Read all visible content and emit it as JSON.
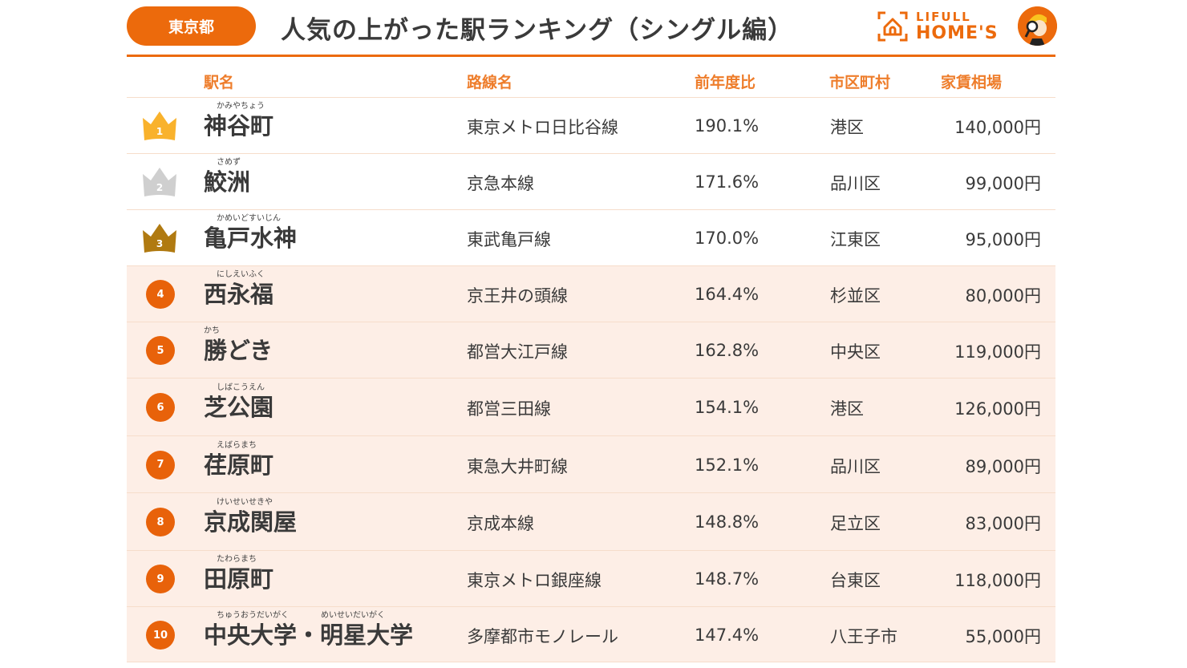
{
  "header": {
    "prefecture": "東京都",
    "title": "人気の上がった駅ランキング（シングル編）",
    "logo": {
      "line1": "LIFULL",
      "line2": "HOME'S",
      "icon": "house-bracket-icon",
      "mascot": "mascot-magnifier-icon"
    }
  },
  "colors": {
    "accent": "#ec6a0c",
    "header_text": "#ee7d2b",
    "gold": "#f9b22c",
    "silver": "#cfcfcf",
    "bronze": "#b07a11",
    "row_tint": "#fdeee6"
  },
  "columns": {
    "station": "駅名",
    "line": "路線名",
    "ratio": "前年度比",
    "city": "市区町村",
    "rent": "家賃相場"
  },
  "rows": [
    {
      "rank": "1",
      "furigana": "かみやちょう",
      "station": "神谷町",
      "line": "東京メトロ日比谷線",
      "ratio": "190.1%",
      "city": "港区",
      "rent": "140,000円"
    },
    {
      "rank": "2",
      "furigana": "さめず",
      "station": "鮫洲",
      "line": "京急本線",
      "ratio": "171.6%",
      "city": "品川区",
      "rent": "99,000円"
    },
    {
      "rank": "3",
      "furigana": "かめいどすいじん",
      "station": "亀戸水神",
      "line": "東武亀戸線",
      "ratio": "170.0%",
      "city": "江東区",
      "rent": "95,000円"
    },
    {
      "rank": "4",
      "furigana": "にしえいふく",
      "station": "西永福",
      "line": "京王井の頭線",
      "ratio": "164.4%",
      "city": "杉並区",
      "rent": "80,000円"
    },
    {
      "rank": "5",
      "furigana": "かち",
      "station": "勝どき",
      "line": "都営大江戸線",
      "ratio": "162.8%",
      "city": "中央区",
      "rent": "119,000円"
    },
    {
      "rank": "6",
      "furigana": "しばこうえん",
      "station": "芝公園",
      "line": "都営三田線",
      "ratio": "154.1%",
      "city": "港区",
      "rent": "126,000円"
    },
    {
      "rank": "7",
      "furigana": "えばらまち",
      "station": "荏原町",
      "line": "東急大井町線",
      "ratio": "152.1%",
      "city": "品川区",
      "rent": "89,000円"
    },
    {
      "rank": "8",
      "furigana": "けいせいせきや",
      "station": "京成関屋",
      "line": "京成本線",
      "ratio": "148.8%",
      "city": "足立区",
      "rent": "83,000円"
    },
    {
      "rank": "9",
      "furigana": "たわらまち",
      "station": "田原町",
      "line": "東京メトロ銀座線",
      "ratio": "148.7%",
      "city": "台東区",
      "rent": "118,000円"
    },
    {
      "rank": "10",
      "furigana": "ちゅうおうだいがく　　　　めいせいだいがく",
      "station": "中央大学・明星大学",
      "line": "多摩都市モノレール",
      "ratio": "147.4%",
      "city": "八王子市",
      "rent": "55,000円"
    }
  ]
}
